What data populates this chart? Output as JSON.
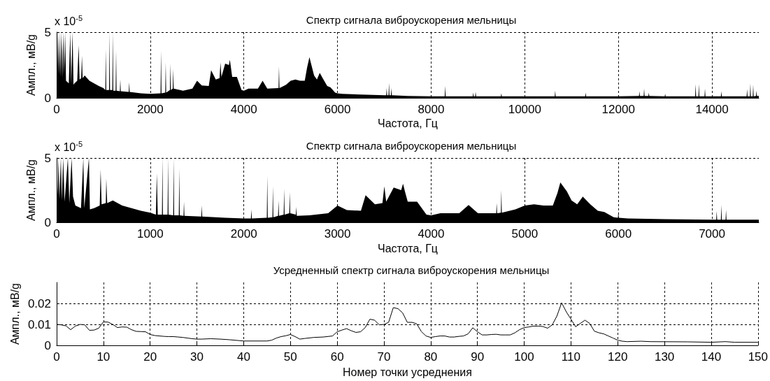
{
  "chart_data": [
    {
      "type": "area",
      "title": "Спектр сигнала виброускорения мельницы",
      "xlabel": "Частота, Гц",
      "ylabel": "Ампл., мВ/g",
      "annotations": [
        "x 10$^{-5}$"
      ],
      "xlim": [
        0,
        15000
      ],
      "xticks": [
        0,
        2000,
        4000,
        6000,
        8000,
        10000,
        12000,
        14000
      ],
      "ylim": [
        0,
        5
      ],
      "yticks": [
        0,
        5
      ],
      "grid": true,
      "series": [
        {
          "color": "#000000",
          "x": [
            0,
            15,
            30,
            45,
            60,
            75,
            100,
            120,
            140,
            160,
            180,
            200,
            260,
            290,
            310,
            340,
            360,
            380,
            440,
            470,
            490,
            525,
            540,
            555,
            600,
            700,
            800,
            900,
            1000,
            1040,
            1050,
            1060,
            1120,
            1130,
            1140,
            1190,
            1200,
            1210,
            1260,
            1270,
            1280,
            1350,
            1360,
            1370,
            1540,
            1550,
            1560,
            1800,
            2000,
            2220,
            2230,
            2240,
            2320,
            2330,
            2340,
            2420,
            2430,
            2440,
            2480,
            2490,
            2500,
            2700,
            2900,
            3000,
            3100,
            3250,
            3300,
            3400,
            3480,
            3500,
            3520,
            3600,
            3680,
            3700,
            3720,
            3750,
            3850,
            3950,
            4000,
            4100,
            4300,
            4400,
            4500,
            4740,
            4750,
            4760,
            4900,
            5000,
            5100,
            5200,
            5300,
            5350,
            5400,
            5450,
            5500,
            5560,
            5620,
            5700,
            5780,
            5850,
            5950,
            6000,
            6100,
            6500,
            7000,
            7040,
            7050,
            7060,
            7090,
            7100,
            7110,
            7140,
            7150,
            7160,
            7500,
            8000,
            8290,
            8300,
            8310,
            8890,
            8900,
            8910,
            8940,
            8950,
            8960,
            9490,
            9500,
            9510,
            10000,
            10640,
            10650,
            10660,
            11290,
            11300,
            11310,
            12000,
            12440,
            12450,
            12460,
            12540,
            12550,
            12560,
            12640,
            12650,
            12660,
            12990,
            13000,
            13010,
            13640,
            13650,
            13660,
            13710,
            13720,
            13730,
            13840,
            13850,
            13860,
            14190,
            14200,
            14210,
            14740,
            14750,
            14760,
            14810,
            14820,
            14830,
            14870,
            14880,
            14890,
            14940,
            14950,
            14960,
            15000
          ],
          "values": [
            5,
            2.0,
            5,
            1.8,
            5,
            1.6,
            5,
            1.5,
            5,
            1.8,
            5,
            1.3,
            1.1,
            5,
            1.1,
            5,
            1.0,
            1.1,
            1.3,
            4.0,
            1.4,
            1.5,
            3.2,
            1.5,
            1.7,
            1.3,
            1.1,
            0.9,
            0.75,
            0.6,
            3.7,
            0.6,
            0.6,
            5,
            0.6,
            0.6,
            5,
            0.55,
            0.55,
            3.6,
            0.55,
            0.5,
            1.4,
            0.5,
            0.45,
            1.2,
            0.45,
            0.35,
            0.3,
            0.35,
            3.6,
            0.35,
            0.4,
            2.7,
            0.4,
            0.6,
            2.6,
            0.6,
            0.7,
            2.2,
            0.7,
            0.55,
            0.7,
            1.3,
            0.95,
            0.9,
            2.1,
            1.4,
            1.5,
            2.7,
            1.6,
            2.6,
            2.5,
            2.9,
            2.4,
            1.6,
            1.6,
            0.6,
            0.55,
            0.7,
            0.7,
            1.3,
            0.7,
            0.75,
            2.4,
            0.75,
            1.0,
            1.3,
            1.4,
            1.3,
            1.3,
            2.3,
            3.1,
            2.4,
            1.7,
            1.4,
            1.9,
            1.4,
            0.9,
            0.8,
            0.4,
            0.35,
            0.3,
            0.25,
            0.2,
            0.2,
            0.75,
            0.2,
            0.2,
            1.15,
            0.2,
            0.2,
            0.75,
            0.2,
            0.15,
            0.12,
            0.12,
            0.9,
            0.12,
            0.12,
            0.4,
            0.12,
            0.12,
            0.45,
            0.12,
            0.12,
            0.35,
            0.12,
            0.12,
            0.12,
            0.55,
            0.12,
            0.12,
            0.4,
            0.12,
            0.12,
            0.15,
            0.5,
            0.15,
            0.15,
            0.7,
            0.15,
            0.15,
            0.4,
            0.15,
            0.12,
            0.3,
            0.12,
            0.12,
            1.05,
            0.12,
            0.12,
            1.05,
            0.12,
            0.12,
            0.7,
            0.12,
            0.12,
            0.5,
            0.12,
            0.12,
            0.65,
            0.12,
            0.12,
            1.1,
            0.12,
            0.12,
            1.0,
            0.12,
            0.15,
            0.55,
            0.15,
            0.15
          ]
        }
      ]
    },
    {
      "type": "area",
      "title": "Спектр сигнала виброускорения мельницы",
      "xlabel": "Частота, Гц",
      "ylabel": "Ампл., мВ/g",
      "annotations": [
        "x 10$^{-5}$"
      ],
      "xlim": [
        0,
        7500
      ],
      "xticks": [
        0,
        1000,
        2000,
        3000,
        4000,
        5000,
        6000,
        7000
      ],
      "ylim": [
        0,
        5
      ],
      "yticks": [
        0,
        5
      ],
      "grid": true,
      "series": [
        {
          "color": "#000000",
          "x": [
            0,
            10,
            20,
            30,
            45,
            55,
            70,
            85,
            120,
            135,
            160,
            175,
            200,
            260,
            285,
            295,
            345,
            355,
            400,
            460,
            470,
            480,
            525,
            530,
            540,
            600,
            700,
            800,
            900,
            1000,
            1060,
            1070,
            1080,
            1125,
            1130,
            1135,
            1185,
            1190,
            1195,
            1245,
            1250,
            1255,
            1305,
            1310,
            1315,
            1355,
            1360,
            1365,
            1545,
            1550,
            1555,
            1800,
            2000,
            2075,
            2080,
            2085,
            2245,
            2250,
            2255,
            2305,
            2310,
            2315,
            2365,
            2370,
            2375,
            2425,
            2430,
            2435,
            2485,
            2490,
            2495,
            2555,
            2560,
            2565,
            2700,
            2900,
            3000,
            3100,
            3250,
            3300,
            3400,
            3480,
            3500,
            3520,
            3600,
            3680,
            3700,
            3720,
            3750,
            3850,
            3950,
            4000,
            4100,
            4300,
            4400,
            4500,
            4695,
            4700,
            4705,
            4745,
            4750,
            4755,
            4900,
            5000,
            5100,
            5200,
            5300,
            5350,
            5380,
            5450,
            5500,
            5560,
            5620,
            5700,
            5780,
            5850,
            5950,
            5995,
            6000,
            6005,
            6100,
            6500,
            7000,
            7045,
            7050,
            7055,
            7095,
            7100,
            7105,
            7145,
            7150,
            7155,
            7500
          ],
          "values": [
            5,
            2.0,
            5,
            1.8,
            5,
            1.7,
            5,
            1.6,
            5,
            1.5,
            5,
            2.0,
            1.3,
            1.1,
            5,
            1.1,
            5,
            1.0,
            1.1,
            1.3,
            4.1,
            1.4,
            1.5,
            3.4,
            1.5,
            1.7,
            1.3,
            1.1,
            0.9,
            0.75,
            0.6,
            3.8,
            0.6,
            0.6,
            5,
            0.6,
            0.6,
            5,
            0.6,
            0.55,
            5,
            0.55,
            0.55,
            4.2,
            0.55,
            0.5,
            1.6,
            0.5,
            0.45,
            1.3,
            0.45,
            0.35,
            0.3,
            0.3,
            1.0,
            0.3,
            0.35,
            3.6,
            0.35,
            0.4,
            2.8,
            0.4,
            0.5,
            1.7,
            0.5,
            0.6,
            2.6,
            0.6,
            0.7,
            2.35,
            0.7,
            0.6,
            1.2,
            0.5,
            0.55,
            0.7,
            1.3,
            0.95,
            0.9,
            2.1,
            1.4,
            1.5,
            2.8,
            1.6,
            2.7,
            2.5,
            3.0,
            2.4,
            1.6,
            1.6,
            0.6,
            0.55,
            0.7,
            0.7,
            1.35,
            0.7,
            0.7,
            1.5,
            0.7,
            0.75,
            2.5,
            0.75,
            1.0,
            1.3,
            1.4,
            1.3,
            1.3,
            2.3,
            3.1,
            2.4,
            1.7,
            1.4,
            2.0,
            1.4,
            0.9,
            0.8,
            0.4,
            0.35,
            0.9,
            0.35,
            0.3,
            0.25,
            0.2,
            0.2,
            0.87,
            0.2,
            0.2,
            1.35,
            0.2,
            0.2,
            0.96,
            0.2,
            0.2
          ]
        }
      ]
    },
    {
      "type": "line",
      "title": "Усредненный спектр сигнала виброускорения мельницы",
      "xlabel": "Номер точки усреднения",
      "ylabel": "Ампл., мВ/g",
      "xlim": [
        0,
        150
      ],
      "xticks": [
        0,
        10,
        20,
        30,
        40,
        50,
        60,
        70,
        80,
        90,
        100,
        110,
        120,
        130,
        140,
        150
      ],
      "ylim": [
        0,
        0.03
      ],
      "yticks": [
        0,
        0.01,
        0.02
      ],
      "grid": true,
      "series": [
        {
          "color": "#000000",
          "x": [
            0,
            1,
            2,
            3,
            4,
            5,
            6,
            7,
            8,
            9,
            10,
            11,
            12,
            13,
            14,
            15,
            16,
            17,
            18,
            19,
            20,
            21,
            22,
            23,
            24,
            25,
            26,
            27,
            28,
            29,
            30,
            31,
            33,
            35,
            37,
            39,
            40,
            45,
            46,
            47,
            48,
            49,
            50,
            51,
            52,
            53,
            55,
            57,
            59,
            60,
            61,
            62,
            63,
            64,
            65,
            66,
            67,
            68,
            69,
            70,
            71,
            72,
            73,
            74,
            75,
            76,
            77,
            78,
            79,
            80,
            81,
            82,
            83,
            84,
            85,
            86,
            87,
            88,
            89,
            90,
            91,
            92,
            93,
            94,
            95,
            96,
            97,
            98,
            99,
            100,
            101,
            102,
            103,
            104,
            105,
            106,
            107,
            108,
            109,
            110,
            111,
            112,
            113,
            114,
            115,
            116,
            117,
            118,
            119,
            120,
            121,
            122,
            125,
            127,
            135,
            140,
            143,
            145,
            150
          ],
          "values": [
            0.01,
            0.0098,
            0.0093,
            0.0075,
            0.0092,
            0.01,
            0.0098,
            0.0072,
            0.0073,
            0.0082,
            0.0112,
            0.0111,
            0.01,
            0.0085,
            0.0088,
            0.0087,
            0.0075,
            0.0067,
            0.0066,
            0.0065,
            0.0052,
            0.0047,
            0.0045,
            0.0043,
            0.0042,
            0.0042,
            0.004,
            0.0038,
            0.0035,
            0.0032,
            0.003,
            0.003,
            0.0032,
            0.003,
            0.0027,
            0.0023,
            0.0021,
            0.0021,
            0.0025,
            0.0035,
            0.0042,
            0.0046,
            0.0052,
            0.0042,
            0.003,
            0.0033,
            0.0038,
            0.004,
            0.0045,
            0.0065,
            0.0073,
            0.008,
            0.007,
            0.0062,
            0.0065,
            0.0085,
            0.0125,
            0.012,
            0.0098,
            0.01,
            0.011,
            0.018,
            0.0175,
            0.0155,
            0.011,
            0.011,
            0.0103,
            0.0066,
            0.0045,
            0.0038,
            0.0042,
            0.0045,
            0.0045,
            0.004,
            0.004,
            0.0043,
            0.0045,
            0.0055,
            0.0084,
            0.0065,
            0.005,
            0.005,
            0.0052,
            0.0053,
            0.005,
            0.005,
            0.005,
            0.006,
            0.0075,
            0.0085,
            0.0088,
            0.0092,
            0.0092,
            0.009,
            0.0082,
            0.0098,
            0.014,
            0.0203,
            0.016,
            0.0125,
            0.0089,
            0.0105,
            0.012,
            0.0105,
            0.0068,
            0.006,
            0.0055,
            0.0045,
            0.0035,
            0.0025,
            0.002,
            0.0018,
            0.002,
            0.0018,
            0.0017,
            0.0015,
            0.0018,
            0.0015,
            0.0015
          ]
        }
      ]
    }
  ]
}
